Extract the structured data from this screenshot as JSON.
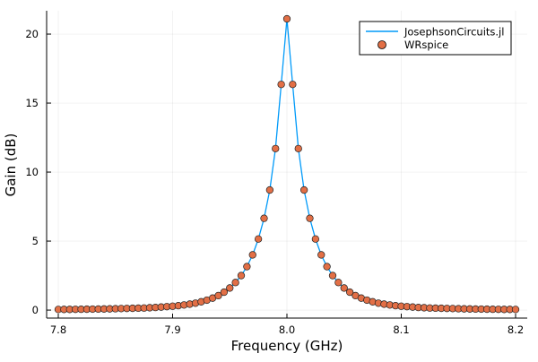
{
  "chart_data": {
    "type": "line",
    "title": "",
    "xlabel": "Frequency (GHz)",
    "ylabel": "Gain (dB)",
    "xlim": [
      7.7898,
      8.2102
    ],
    "ylim": [
      -0.58,
      21.69
    ],
    "xticks": [
      7.8,
      7.9,
      8.0,
      8.1,
      8.2
    ],
    "xtick_labels": [
      "7.8",
      "7.9",
      "8.0",
      "8.1",
      "8.2"
    ],
    "yticks": [
      0,
      5,
      10,
      15,
      20
    ],
    "ytick_labels": [
      "0",
      "5",
      "10",
      "15",
      "20"
    ],
    "grid": true,
    "legend_position": "top-right",
    "x": [
      7.8,
      7.805,
      7.81,
      7.815,
      7.82,
      7.825,
      7.83,
      7.835,
      7.84,
      7.845,
      7.85,
      7.855,
      7.86,
      7.865,
      7.87,
      7.875,
      7.88,
      7.885,
      7.89,
      7.895,
      7.9,
      7.905,
      7.91,
      7.915,
      7.92,
      7.925,
      7.93,
      7.935,
      7.94,
      7.945,
      7.95,
      7.955,
      7.96,
      7.965,
      7.97,
      7.975,
      7.98,
      7.985,
      7.99,
      7.995,
      8.0,
      8.005,
      8.01,
      8.015,
      8.02,
      8.025,
      8.03,
      8.035,
      8.04,
      8.045,
      8.05,
      8.055,
      8.06,
      8.065,
      8.07,
      8.075,
      8.08,
      8.085,
      8.09,
      8.095,
      8.1,
      8.105,
      8.11,
      8.115,
      8.12,
      8.125,
      8.13,
      8.135,
      8.14,
      8.145,
      8.15,
      8.155,
      8.16,
      8.165,
      8.17,
      8.175,
      8.18,
      8.185,
      8.19,
      8.195,
      8.2
    ],
    "series": [
      {
        "name": "JosephsonCircuits.jl",
        "style": "line",
        "color": "#009af9",
        "values": [
          0.045,
          0.048,
          0.05,
          0.055,
          0.06,
          0.065,
          0.07,
          0.075,
          0.08,
          0.09,
          0.1,
          0.11,
          0.12,
          0.13,
          0.14,
          0.15,
          0.17,
          0.19,
          0.22,
          0.25,
          0.28,
          0.32,
          0.37,
          0.43,
          0.5,
          0.6,
          0.72,
          0.87,
          1.05,
          1.3,
          1.6,
          2.0,
          2.5,
          3.15,
          4.0,
          5.15,
          6.65,
          8.7,
          11.7,
          16.35,
          21.1,
          16.35,
          11.7,
          8.7,
          6.65,
          5.15,
          4.0,
          3.15,
          2.5,
          2.0,
          1.6,
          1.3,
          1.05,
          0.87,
          0.72,
          0.6,
          0.5,
          0.43,
          0.37,
          0.32,
          0.28,
          0.25,
          0.22,
          0.19,
          0.17,
          0.15,
          0.14,
          0.13,
          0.12,
          0.11,
          0.1,
          0.09,
          0.08,
          0.075,
          0.07,
          0.065,
          0.06,
          0.055,
          0.05,
          0.048,
          0.045
        ]
      },
      {
        "name": "WRspice",
        "style": "scatter",
        "color": "#e26f46",
        "values": [
          0.045,
          0.048,
          0.05,
          0.055,
          0.06,
          0.065,
          0.07,
          0.075,
          0.08,
          0.09,
          0.1,
          0.11,
          0.12,
          0.13,
          0.14,
          0.15,
          0.17,
          0.19,
          0.22,
          0.25,
          0.28,
          0.32,
          0.37,
          0.43,
          0.5,
          0.6,
          0.72,
          0.87,
          1.05,
          1.3,
          1.6,
          2.0,
          2.5,
          3.15,
          4.0,
          5.15,
          6.65,
          8.7,
          11.7,
          16.35,
          21.1,
          16.35,
          11.7,
          8.7,
          6.65,
          5.15,
          4.0,
          3.15,
          2.5,
          2.0,
          1.6,
          1.3,
          1.05,
          0.87,
          0.72,
          0.6,
          0.5,
          0.43,
          0.37,
          0.32,
          0.28,
          0.25,
          0.22,
          0.19,
          0.17,
          0.15,
          0.14,
          0.13,
          0.12,
          0.11,
          0.1,
          0.09,
          0.08,
          0.075,
          0.07,
          0.065,
          0.06,
          0.055,
          0.05,
          0.048,
          0.045
        ]
      }
    ]
  }
}
